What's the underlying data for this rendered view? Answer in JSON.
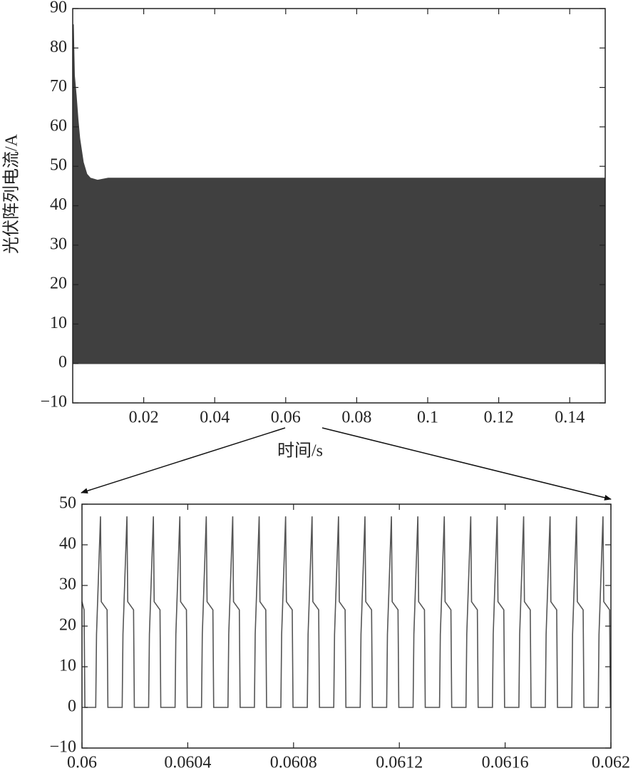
{
  "chart_data": [
    {
      "type": "band",
      "ylabel": "光伏阵列电流/A",
      "xlabel": "时间/s",
      "color": "#404040",
      "x": [
        0.0002,
        0.0005,
        0.001,
        0.0015,
        0.002,
        0.003,
        0.004,
        0.005,
        0.007,
        0.01,
        0.15
      ],
      "upper": [
        86,
        73,
        68,
        62,
        57,
        51,
        48,
        47,
        46.5,
        47,
        47
      ],
      "lower": [
        0,
        0,
        0,
        0,
        0,
        0,
        0,
        0,
        0,
        0,
        0
      ],
      "xlim": [
        0,
        0.15
      ],
      "xticks": [
        0.02,
        0.04,
        0.06,
        0.08,
        0.1,
        0.12,
        0.14
      ],
      "ylim": [
        -10,
        90
      ],
      "yticks": [
        {
          "value": -10,
          "label": "−10"
        },
        0,
        10,
        20,
        30,
        40,
        50,
        60,
        70,
        80,
        90
      ]
    },
    {
      "type": "line",
      "color": "#555555",
      "x": [
        0.06,
        0.060008,
        0.060011,
        0.060052,
        0.060055,
        0.06007,
        0.060073,
        0.060095,
        0.060098,
        0.060152,
        0.060155,
        0.06017,
        0.060173,
        0.060195,
        0.060198,
        0.060252,
        0.060255,
        0.06027,
        0.060273,
        0.060295,
        0.060298,
        0.060352,
        0.060355,
        0.06037,
        0.060373,
        0.060395,
        0.060398,
        0.060452,
        0.060455,
        0.06047,
        0.060473,
        0.060495,
        0.060498,
        0.060552,
        0.060555,
        0.06057,
        0.060573,
        0.060595,
        0.060598,
        0.060652,
        0.060655,
        0.06067,
        0.060673,
        0.060695,
        0.060698,
        0.060752,
        0.060755,
        0.06077,
        0.060773,
        0.060795,
        0.060798,
        0.060852,
        0.060855,
        0.06087,
        0.060873,
        0.060895,
        0.060898,
        0.060952,
        0.060955,
        0.06097,
        0.060973,
        0.060995,
        0.060998,
        0.061052,
        0.061055,
        0.06107,
        0.061073,
        0.061095,
        0.061098,
        0.061152,
        0.061155,
        0.06117,
        0.061173,
        0.061195,
        0.061198,
        0.061252,
        0.061255,
        0.06127,
        0.061273,
        0.061295,
        0.061298,
        0.061352,
        0.061355,
        0.06137,
        0.061373,
        0.061395,
        0.061398,
        0.061452,
        0.061455,
        0.06147,
        0.061473,
        0.061495,
        0.061498,
        0.061552,
        0.061555,
        0.06157,
        0.061573,
        0.061595,
        0.061598,
        0.061652,
        0.061655,
        0.06167,
        0.061673,
        0.061695,
        0.061698,
        0.061752,
        0.061755,
        0.06177,
        0.061773,
        0.061795,
        0.061798,
        0.061852,
        0.061855,
        0.06187,
        0.061873,
        0.061895,
        0.061898,
        0.061952,
        0.061955,
        0.06197,
        0.061973,
        0.061995,
        0.061998
      ],
      "values": [
        26,
        24,
        0,
        0,
        18,
        47,
        26,
        24,
        0,
        0,
        18,
        47,
        26,
        24,
        0,
        0,
        18,
        47,
        26,
        24,
        0,
        0,
        18,
        47,
        26,
        24,
        0,
        0,
        18,
        47,
        26,
        24,
        0,
        0,
        18,
        47,
        26,
        24,
        0,
        0,
        18,
        47,
        26,
        24,
        0,
        0,
        18,
        47,
        26,
        24,
        0,
        0,
        18,
        47,
        26,
        24,
        0,
        0,
        18,
        47,
        26,
        24,
        0,
        0,
        18,
        47,
        26,
        24,
        0,
        0,
        18,
        47,
        26,
        24,
        0,
        0,
        18,
        47,
        26,
        24,
        0,
        0,
        18,
        47,
        26,
        24,
        0,
        0,
        18,
        47,
        26,
        24,
        0,
        0,
        18,
        47,
        26,
        24,
        0,
        0,
        18,
        47,
        26,
        24,
        0,
        0,
        18,
        47,
        26,
        24,
        0,
        0,
        18,
        47,
        26,
        24,
        0,
        0,
        18,
        47,
        26,
        24,
        0
      ],
      "xlim": [
        0.06,
        0.062
      ],
      "xticks": [
        0.06,
        0.0604,
        0.0608,
        0.0612,
        0.0616,
        0.062
      ],
      "ylim": [
        -10,
        50
      ],
      "yticks": [
        {
          "value": -10,
          "label": "−10"
        },
        0,
        10,
        20,
        30,
        40,
        50
      ]
    }
  ]
}
